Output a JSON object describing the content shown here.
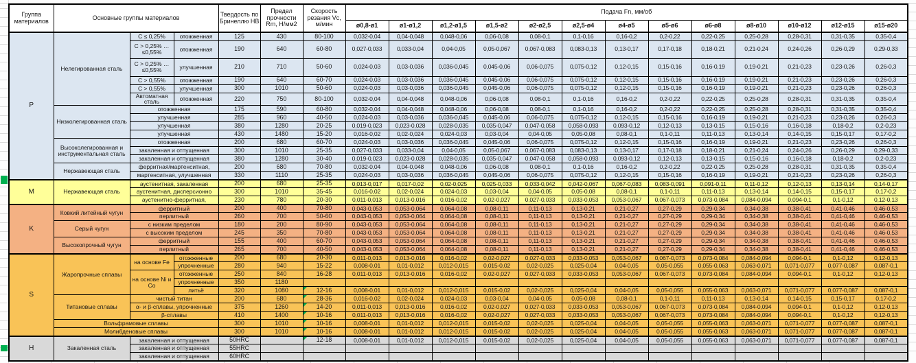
{
  "colors": {
    "P": "#DCE6F1",
    "M": "#FFFF99",
    "K": "#F4B183",
    "S": "#F9C357",
    "H": "#D9D9D9",
    "green": "#00B050",
    "grid": "#000000"
  },
  "table": {
    "header": {
      "group_col": "Группа материалов",
      "main_col": "Основные группы материалов",
      "hardness_col": "Твердость по Бринеллю НВ",
      "strength_col": "Предел прочности Rm, Н/мм2",
      "speed_col": "Скорость резания Vc, м/мин",
      "feed_title": "Подача Fn, мм/об"
    },
    "feed_columns": [
      "ø0,8-ø1",
      "ø1-ø1,2",
      "ø1,2-ø1,5",
      "ø1,5-ø2",
      "ø2-ø2,5",
      "ø2,5-ø4",
      "ø4-ø5",
      "ø5-ø6",
      "ø6-ø8",
      "ø8-ø10",
      "ø10-ø12",
      "ø12-ø15",
      "ø15-ø20"
    ],
    "feed_patterns": {
      "A": [
        "0,032-0,04",
        "0,04-0,048",
        "0,048-0,06",
        "0,06-0,08",
        "0,08-0,1",
        "0,1-0,16",
        "0,16-0,2",
        "0,2-0,22",
        "0,22-0,25",
        "0,25-0,28",
        "0,28-0,31",
        "0,31-0,35",
        "0,35-0,4"
      ],
      "B": [
        "0,027-0,033",
        "0,033-0,04",
        "0,04-0,05",
        "0,05-0,067",
        "0,067-0,083",
        "0,083-0,13",
        "0,13-0,17",
        "0,17-0,18",
        "0,18-0,21",
        "0,21-0,24",
        "0,24-0,26",
        "0,26-0,29",
        "0,29-0,33"
      ],
      "C": [
        "0,024-0,03",
        "0,03-0,036",
        "0,036-0,045",
        "0,045-0,06",
        "0,06-0,075",
        "0,075-0,12",
        "0,12-0,15",
        "0,15-0,16",
        "0,16-0,19",
        "0,19-0,21",
        "0,21-0,23",
        "0,23-0,26",
        "0,26-0,3"
      ],
      "D": [
        "0,019-0,023",
        "0,023-0,028",
        "0,028-0,035",
        "0,035-0,047",
        "0,047-0,058",
        "0,058-0,093",
        "0,093-0,12",
        "0,12-0,13",
        "0,13-0,15",
        "0,15-0,16",
        "0,16-0,18",
        "0,18-0,2",
        "0,2-0,23"
      ],
      "E": [
        "0,016-0,02",
        "0,02-0,024",
        "0,024-0,03",
        "0,03-0,04",
        "0,04-0,05",
        "0,05-0,08",
        "0,08-0,1",
        "0,1-0,11",
        "0,11-0,13",
        "0,13-0,14",
        "0,14-0,15",
        "0,15-0,17",
        "0,17-0,2"
      ],
      "F": [
        "0,013-0,017",
        "0,017-0,02",
        "0,02-0,025",
        "0,025-0,033",
        "0,033-0,042",
        "0,042-0,067",
        "0,067-0,083",
        "0,083-0,091",
        "0,091-0,11",
        "0,11-0,12",
        "0,12-0,13",
        "0,13-0,14",
        "0,14-0,17"
      ],
      "G": [
        "0,011-0,013",
        "0,013-0,016",
        "0,016-0,02",
        "0,02-0,027",
        "0,027-0,033",
        "0,033-0,053",
        "0,053-0,067",
        "0,067-0,073",
        "0,073-0,084",
        "0,084-0,094",
        "0,094-0,1",
        "0,1-0,12",
        "0,12-0,13"
      ],
      "K": [
        "0,043-0,053",
        "0,053-0,064",
        "0,064-0,08",
        "0,08-0,11",
        "0,11-0,13",
        "0,13-0,21",
        "0,21-0,27",
        "0,27-0,29",
        "0,29-0,34",
        "0,34-0,38",
        "0,38-0,41",
        "0,41-0,46",
        "0,46-0,53"
      ],
      "HS": [
        "0,008-0,01",
        "0,01-0,012",
        "0,012-0,015",
        "0,015-0,02",
        "0,02-0,025",
        "0,025-0,04",
        "0,04-0,05",
        "0,05-0,055",
        "0,055-0,063",
        "0,063-0,071",
        "0,071-0,077",
        "0,077-0,087",
        "0,087-0,1"
      ],
      "NONE": [
        "",
        "",
        "",
        "",
        "",
        "",
        "",
        "",
        "",
        "",
        "",
        "",
        ""
      ]
    },
    "groups": [
      {
        "id": "P",
        "label": "P",
        "rows": [
          {
            "mat": [
              {
                "t": "Нелегированная сталь",
                "rs": 6
              },
              {
                "t": "C ≤ 0,25%"
              },
              {
                "t": "отожженная"
              }
            ],
            "hb": "125",
            "rm": "430",
            "vc": "80-100",
            "fp": "A"
          },
          {
            "mat": [
              {
                "t": "C > 0,25% … ≤0,55%"
              },
              {
                "t": "отожженная"
              }
            ],
            "hb": "190",
            "rm": "640",
            "vc": "60-80",
            "fp": "B",
            "h": "t"
          },
          {
            "mat": [
              {
                "t": "C > 0,25% … ≤0,55%"
              },
              {
                "t": "улучшенная"
              }
            ],
            "hb": "210",
            "rm": "710",
            "vc": "50-60",
            "fp": "C",
            "h": "t"
          },
          {
            "mat": [
              {
                "t": "C > 0,55%"
              },
              {
                "t": "отожженная"
              }
            ],
            "hb": "190",
            "rm": "640",
            "vc": "60-70",
            "fp": "C"
          },
          {
            "mat": [
              {
                "t": "C > 0,55%"
              },
              {
                "t": "улучшенная"
              }
            ],
            "hb": "300",
            "rm": "1010",
            "vc": "50-60",
            "fp": "C"
          },
          {
            "mat": [
              {
                "t": "Автоматная сталь"
              },
              {
                "t": "отожженная"
              }
            ],
            "hb": "220",
            "rm": "750",
            "vc": "80-100",
            "fp": "A",
            "h": "m"
          },
          {
            "mat": [
              {
                "t": "Низколегированная сталь",
                "rs": 4
              },
              {
                "t": "отожженная",
                "cs": 2
              }
            ],
            "hb": "175",
            "rm": "590",
            "vc": "60-80",
            "fp": "A"
          },
          {
            "mat": [
              {
                "t": "улучшенная",
                "cs": 2
              }
            ],
            "hb": "285",
            "rm": "960",
            "vc": "40-50",
            "fp": "C"
          },
          {
            "mat": [
              {
                "t": "улучшенная",
                "cs": 2
              }
            ],
            "hb": "380",
            "rm": "1280",
            "vc": "20-25",
            "fp": "D"
          },
          {
            "mat": [
              {
                "t": "улучшенная",
                "cs": 2
              }
            ],
            "hb": "430",
            "rm": "1480",
            "vc": "15-20",
            "fp": "E"
          },
          {
            "mat": [
              {
                "t": "Высоколегированная и инструментальная сталь",
                "rs": 3
              },
              {
                "t": "отожженная",
                "cs": 2
              }
            ],
            "hb": "200",
            "rm": "680",
            "vc": "60-70",
            "fp": "C"
          },
          {
            "mat": [
              {
                "t": "закаленная и отпущенная",
                "cs": 2
              }
            ],
            "hb": "300",
            "rm": "1010",
            "vc": "25-35",
            "fp": "B"
          },
          {
            "mat": [
              {
                "t": "закаленная и отпущенная",
                "cs": 2
              }
            ],
            "hb": "380",
            "rm": "1280",
            "vc": "30-40",
            "fp": "D"
          },
          {
            "mat": [
              {
                "t": "Нержавеющая сталь",
                "rs": 2
              },
              {
                "t": "ферритная/мартенситная,",
                "cs": 2
              }
            ],
            "hb": "200",
            "rm": "680",
            "vc": "70-80",
            "fp": "A"
          },
          {
            "mat": [
              {
                "t": "мартенситная, улучшенная",
                "cs": 2
              }
            ],
            "hb": "330",
            "rm": "1110",
            "vc": "25-35",
            "fp": "C"
          }
        ]
      },
      {
        "id": "M",
        "label": "M",
        "rows": [
          {
            "mat": [
              {
                "t": "Нержавеющая сталь",
                "rs": 3
              },
              {
                "t": "аустенитная, закаленная",
                "cs": 2
              }
            ],
            "hb": "200",
            "rm": "680",
            "vc": "25-35",
            "fp": "F"
          },
          {
            "mat": [
              {
                "t": "аустенитная, дисперсионно",
                "cs": 2
              }
            ],
            "hb": "300",
            "rm": "1010",
            "vc": "35-45",
            "fp": "E"
          },
          {
            "mat": [
              {
                "t": "аустенитно-ферритная,",
                "cs": 2
              }
            ],
            "hb": "230",
            "rm": "780",
            "vc": "20-30",
            "fp": "G"
          }
        ]
      },
      {
        "id": "K",
        "label": "K",
        "rows": [
          {
            "mat": [
              {
                "t": "Ковкий литейный чугун",
                "rs": 2
              },
              {
                "t": "ферритный",
                "cs": 2
              }
            ],
            "hb": "200",
            "rm": "400",
            "vc": "70-80",
            "fp": "K"
          },
          {
            "mat": [
              {
                "t": "перлитный",
                "cs": 2
              }
            ],
            "hb": "260",
            "rm": "700",
            "vc": "50-60",
            "fp": "K"
          },
          {
            "mat": [
              {
                "t": "Серый чугун",
                "rs": 2
              },
              {
                "t": "с низким пределом",
                "cs": 2
              }
            ],
            "hb": "180",
            "rm": "200",
            "vc": "80-90",
            "fp": "K"
          },
          {
            "mat": [
              {
                "t": "с высоким пределом",
                "cs": 2
              }
            ],
            "hb": "245",
            "rm": "350",
            "vc": "70-80",
            "fp": "K"
          },
          {
            "mat": [
              {
                "t": "Высокопрочный чугун",
                "rs": 2
              },
              {
                "t": "ферритный",
                "cs": 2
              }
            ],
            "hb": "155",
            "rm": "400",
            "vc": "60-70",
            "fp": "K"
          },
          {
            "mat": [
              {
                "t": "перлитный",
                "cs": 2
              }
            ],
            "hb": "265",
            "rm": "700",
            "vc": "40-50",
            "fp": "K"
          }
        ]
      },
      {
        "id": "S",
        "label": "S",
        "rows": [
          {
            "mat": [
              {
                "t": "Жаропрочные сплавы",
                "rs": 5
              },
              {
                "t": "на основе Fe",
                "rs": 2
              },
              {
                "t": "отожженные"
              }
            ],
            "hb": "200",
            "rm": "680",
            "vc": "20-30",
            "fp": "G"
          },
          {
            "mat": [
              {
                "t": "упрочненные"
              }
            ],
            "hb": "280",
            "rm": "940",
            "vc": "15-22",
            "fp": "HS"
          },
          {
            "mat": [
              {
                "t": "на основе Ni и Co",
                "rs": 3
              },
              {
                "t": "отожженные"
              }
            ],
            "hb": "250",
            "rm": "840",
            "vc": "16-28",
            "fp": "G"
          },
          {
            "mat": [
              {
                "t": "упрочненные"
              }
            ],
            "hb": "350",
            "rm": "1180",
            "vc": "",
            "fp": "NONE"
          },
          {
            "mat": [
              {
                "t": "литьё"
              }
            ],
            "hb": "320",
            "rm": "1080",
            "vc": "12-16",
            "vf": true,
            "fp": "HS"
          },
          {
            "mat": [
              {
                "t": "Титановые сплавы",
                "rs": 3
              },
              {
                "t": "чистый титан",
                "cs": 2
              }
            ],
            "hb": "200",
            "rm": "680",
            "vc": "28-36",
            "vf": true,
            "fp": "E"
          },
          {
            "mat": [
              {
                "t": "α- и β-сплавы, упрочненные",
                "cs": 2
              }
            ],
            "hb": "375",
            "rm": "1260",
            "vc": "14-20",
            "vf": true,
            "fp": "G"
          },
          {
            "mat": [
              {
                "t": "β-сплавы",
                "cs": 2
              }
            ],
            "hb": "410",
            "rm": "1400",
            "vc": "10-16",
            "vf": true,
            "fp": "G"
          },
          {
            "mat": [
              {
                "t": "Вольфрамовые сплавы",
                "cs": 3
              }
            ],
            "hb": "300",
            "rm": "1010",
            "vc": "10-16",
            "vf": true,
            "fp": "HS"
          },
          {
            "mat": [
              {
                "t": "Молибденовые сплавы",
                "cs": 3
              }
            ],
            "hb": "300",
            "rm": "1010",
            "vc": "10-16",
            "vf": true,
            "fp": "HS"
          }
        ]
      },
      {
        "id": "H",
        "label": "H",
        "rows": [
          {
            "mat": [
              {
                "t": "Закаленная сталь",
                "rs": 3
              },
              {
                "t": "закаленная и отпущенная",
                "cs": 2
              }
            ],
            "hb": "50HRC",
            "rm": "",
            "vc": "12-18",
            "vf": true,
            "fp": "HS"
          },
          {
            "mat": [
              {
                "t": "закаленная и отпущенная",
                "cs": 2
              }
            ],
            "hb": "55HRC",
            "rm": "",
            "vc": "",
            "fp": "NONE"
          },
          {
            "mat": [
              {
                "t": "закаленная и отпущенная",
                "cs": 2
              }
            ],
            "hb": "60HRC",
            "rm": "",
            "vc": "",
            "fp": "NONE"
          }
        ]
      }
    ]
  }
}
